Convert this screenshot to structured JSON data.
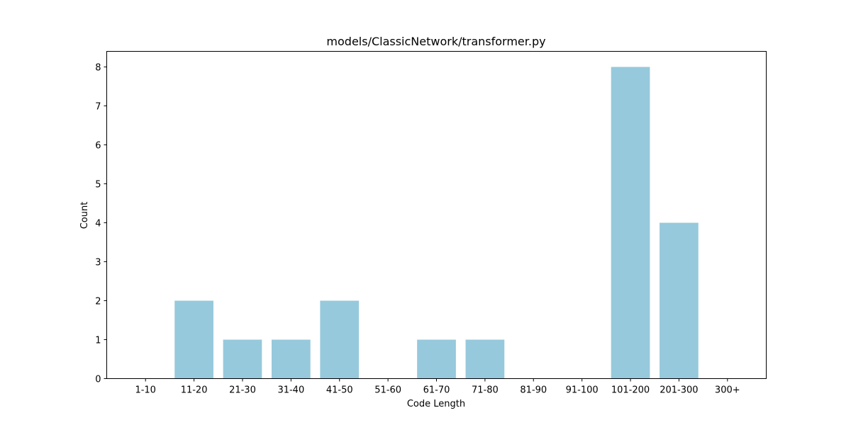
{
  "chart_data": {
    "type": "bar",
    "title": "models/ClassicNetwork/transformer.py",
    "xlabel": "Code Length",
    "ylabel": "Count",
    "categories": [
      "1-10",
      "11-20",
      "21-30",
      "31-40",
      "41-50",
      "51-60",
      "61-70",
      "71-80",
      "81-90",
      "91-100",
      "101-200",
      "201-300",
      "300+"
    ],
    "values": [
      0,
      2,
      1,
      1,
      2,
      0,
      1,
      1,
      0,
      0,
      8,
      4,
      0
    ],
    "ylim": [
      0,
      8.4
    ],
    "yticks": [
      0,
      1,
      2,
      3,
      4,
      5,
      6,
      7,
      8
    ],
    "bar_color": "#96c9dc",
    "grid": false,
    "legend": "none"
  }
}
